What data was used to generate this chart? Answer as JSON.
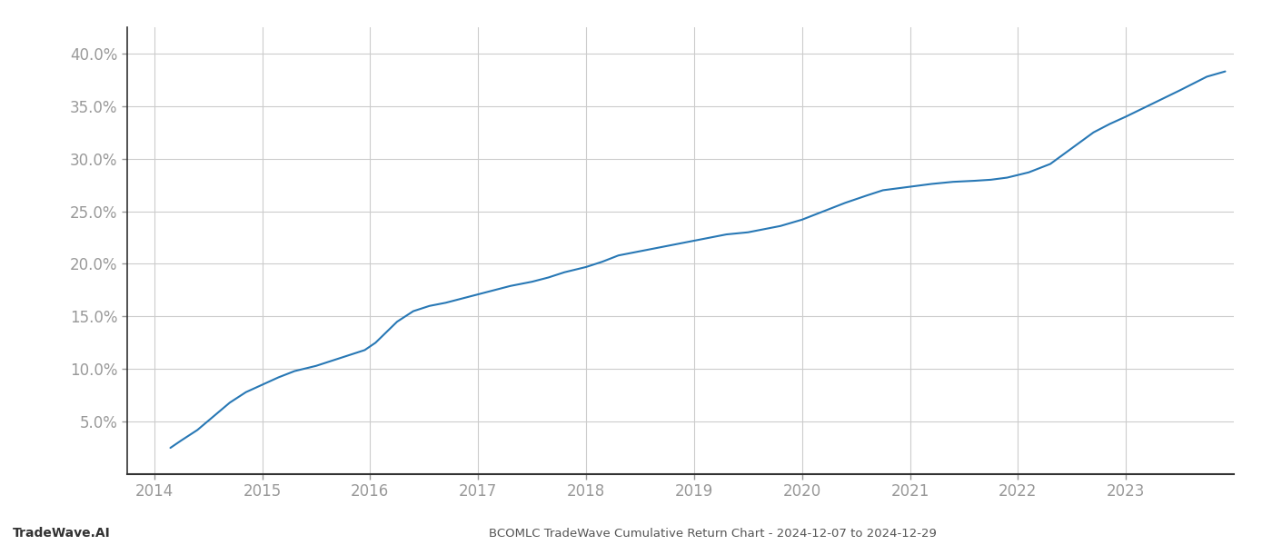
{
  "title": "BCOMLC TradeWave Cumulative Return Chart - 2024-12-07 to 2024-12-29",
  "watermark": "TradeWave.AI",
  "line_color": "#2878b5",
  "line_width": 1.5,
  "background_color": "#ffffff",
  "grid_color": "#cccccc",
  "x_years": [
    2014.15,
    2014.25,
    2014.4,
    2014.55,
    2014.7,
    2014.85,
    2015.0,
    2015.15,
    2015.3,
    2015.5,
    2015.65,
    2015.8,
    2015.95,
    2016.05,
    2016.15,
    2016.25,
    2016.4,
    2016.55,
    2016.7,
    2016.85,
    2017.0,
    2017.15,
    2017.3,
    2017.5,
    2017.65,
    2017.8,
    2018.0,
    2018.15,
    2018.3,
    2018.5,
    2018.65,
    2018.8,
    2019.0,
    2019.15,
    2019.3,
    2019.5,
    2019.65,
    2019.8,
    2020.0,
    2020.2,
    2020.4,
    2020.6,
    2020.75,
    2020.9,
    2021.05,
    2021.2,
    2021.4,
    2021.6,
    2021.75,
    2021.9,
    2022.1,
    2022.3,
    2022.5,
    2022.7,
    2022.85,
    2023.0,
    2023.2,
    2023.5,
    2023.75,
    2023.92
  ],
  "y_values": [
    2.5,
    3.2,
    4.2,
    5.5,
    6.8,
    7.8,
    8.5,
    9.2,
    9.8,
    10.3,
    10.8,
    11.3,
    11.8,
    12.5,
    13.5,
    14.5,
    15.5,
    16.0,
    16.3,
    16.7,
    17.1,
    17.5,
    17.9,
    18.3,
    18.7,
    19.2,
    19.7,
    20.2,
    20.8,
    21.2,
    21.5,
    21.8,
    22.2,
    22.5,
    22.8,
    23.0,
    23.3,
    23.6,
    24.2,
    25.0,
    25.8,
    26.5,
    27.0,
    27.2,
    27.4,
    27.6,
    27.8,
    27.9,
    28.0,
    28.2,
    28.7,
    29.5,
    31.0,
    32.5,
    33.3,
    34.0,
    35.0,
    36.5,
    37.8,
    38.3
  ],
  "xlim": [
    2013.75,
    2024.0
  ],
  "ylim": [
    0.0,
    42.5
  ],
  "yticks": [
    5.0,
    10.0,
    15.0,
    20.0,
    25.0,
    30.0,
    35.0,
    40.0
  ],
  "xticks": [
    2014,
    2015,
    2016,
    2017,
    2018,
    2019,
    2020,
    2021,
    2022,
    2023
  ],
  "title_fontsize": 9.5,
  "watermark_fontsize": 10,
  "tick_fontsize": 12,
  "tick_color": "#999999",
  "spine_color": "#333333"
}
